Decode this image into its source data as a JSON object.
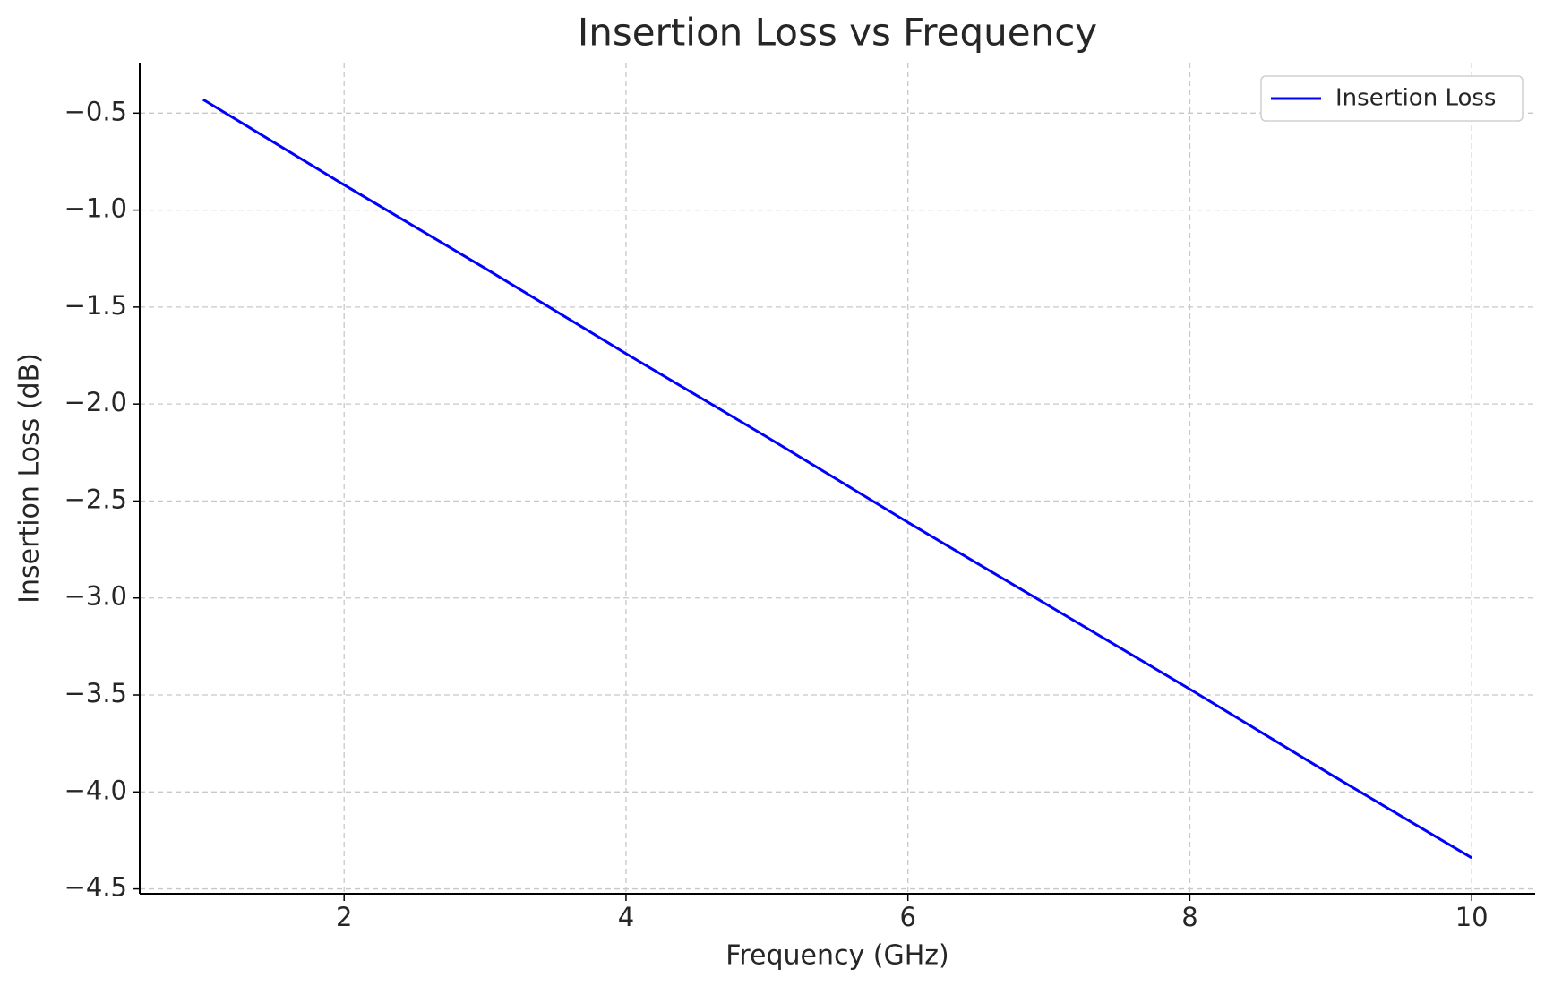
{
  "chart_data": {
    "type": "line",
    "title": "Insertion Loss vs Frequency",
    "x_label": "Frequency (GHz)",
    "y_label": "Insertion Loss (dB)",
    "x": [
      1,
      2,
      3,
      4,
      5,
      6,
      7,
      8,
      9,
      10
    ],
    "series": [
      {
        "name": "Insertion Loss",
        "color": "#0000ff",
        "values": [
          -0.43,
          -0.87,
          -1.3,
          -1.74,
          -2.17,
          -2.61,
          -3.04,
          -3.47,
          -3.91,
          -4.34
        ]
      }
    ],
    "xlim": [
      0.55,
      10.45
    ],
    "ylim": [
      -4.525,
      -0.24
    ],
    "xticks": [
      2,
      4,
      6,
      8,
      10
    ],
    "yticks": [
      {
        "value": -4.5,
        "label": "−4.5"
      },
      {
        "value": -4.0,
        "label": "−4.0"
      },
      {
        "value": -3.5,
        "label": "−3.5"
      },
      {
        "value": -3.0,
        "label": "−3.0"
      },
      {
        "value": -2.5,
        "label": "−2.5"
      },
      {
        "value": -2.0,
        "label": "−2.0"
      },
      {
        "value": -1.5,
        "label": "−1.5"
      },
      {
        "value": -1.0,
        "label": "−1.0"
      },
      {
        "value": -0.5,
        "label": "−0.5"
      }
    ],
    "grid": true,
    "legend": "upper right"
  }
}
